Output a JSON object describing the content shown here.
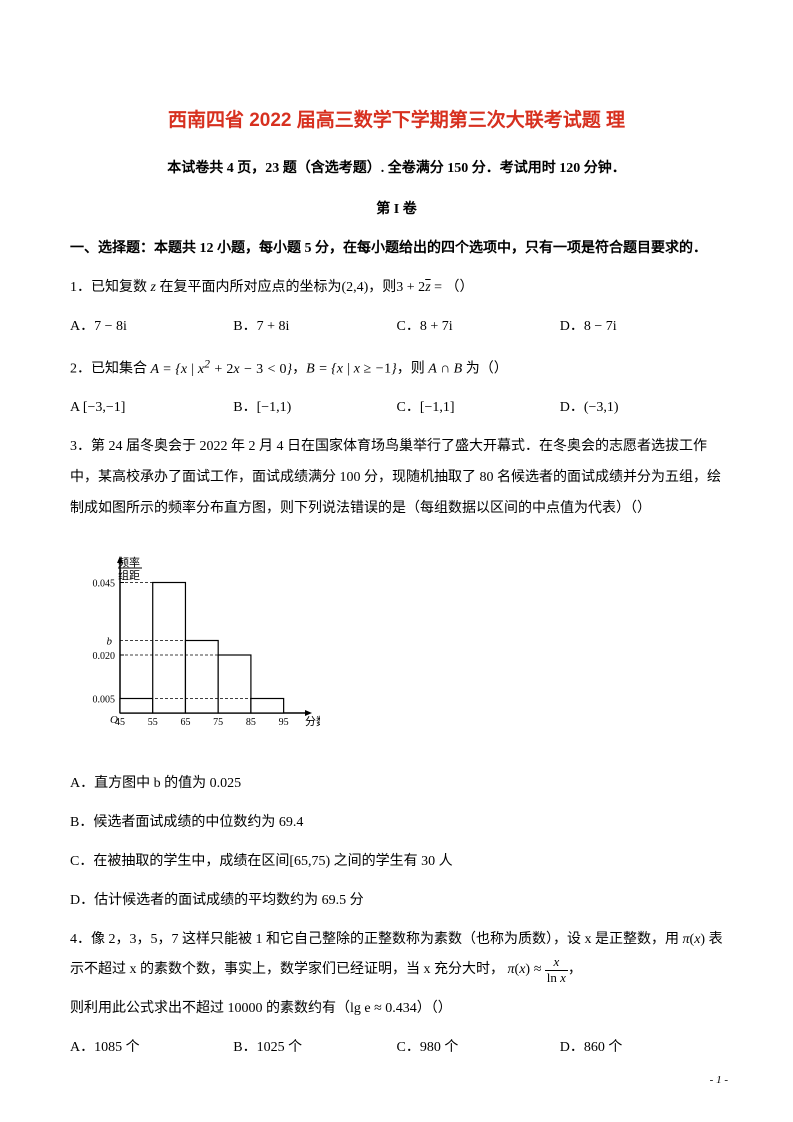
{
  "title": "西南四省 2022 届高三数学下学期第三次大联考试题 理",
  "title_color": "#d7301f",
  "subtitle": "本试卷共 4 页，23 题（含选考题）. 全卷满分 150 分．考试用时 120 分钟．",
  "section_label": "第 I 卷",
  "instruction": "一、选择题：本题共 12 小题，每小题 5 分，在每小题给出的四个选项中，只有一项是符合题目要求的．",
  "q1": {
    "text_a": "1．已知复数 ",
    "text_b": " 在复平面内所对应点的坐标为",
    "text_c": "，则",
    "text_d": "（）",
    "optA": "A．7 − 8i",
    "optB": "B．7 + 8i",
    "optC": "C．8 + 7i",
    "optD": "D．8 − 7i"
  },
  "q2": {
    "text_a": "2．已知集合 ",
    "text_b": "，",
    "text_c": "，则 ",
    "text_d": " 为（）",
    "optA": "A  [−3,−1]",
    "optB": "B．[−1,1)",
    "optC": "C．[−1,1]",
    "optD": "D．(−3,1)"
  },
  "q3": {
    "text": "3．第 24 届冬奥会于 2022 年 2 月 4 日在国家体育场鸟巢举行了盛大开幕式．在冬奥会的志愿者选拔工作中，某高校承办了面试工作，面试成绩满分 100 分，现随机抽取了 80 名候选者的面试成绩并分为五组，绘制成如图所示的频率分布直方图，则下列说法错误的是（每组数据以区间的中点值为代表）（）",
    "optA": "A．直方图中 b 的值为 0.025",
    "optB": "B．候选者面试成绩的中位数约为 69.4",
    "optC_a": "C．在被抽取的学生中，成绩在区间",
    "optC_b": "之间的学生有 30 人",
    "optD": "D．估计候选者的面试成绩的平均数约为 69.5 分"
  },
  "q4": {
    "text_a": "4．像 2，3，5，7 这样只能被 1 和它自己整除的正整数称为素数（也称为质数），设 x 是正整数，用",
    "text_b": "表示不超过 x 的素数个数，事实上，数学家们已经证明，当 x 充分大时，",
    "text_c": "，",
    "text_d": "则利用此公式求出不超过 10000 的素数约有（",
    "text_e": "）（）",
    "optA": "A．1085 个",
    "optB": "B．1025 个",
    "optC": "C．980 个",
    "optD": "D．860 个"
  },
  "histogram": {
    "ylabel_top": "频率",
    "ylabel_bot": "组距",
    "xlabel": "分数",
    "yticks": [
      "0.045",
      "0.020",
      "0.005"
    ],
    "xticks": [
      "45",
      "55",
      "65",
      "75",
      "85",
      "95"
    ],
    "bar_label": "b",
    "bars": [
      {
        "x": 45,
        "h": 0.005
      },
      {
        "x": 55,
        "h": 0.045
      },
      {
        "x": 65,
        "h": 0.025
      },
      {
        "x": 75,
        "h": 0.02
      },
      {
        "x": 85,
        "h": 0.005
      }
    ],
    "axis_color": "#000000",
    "bar_fill": "#ffffff",
    "bar_stroke": "#000000"
  },
  "page_num": "- 1 -"
}
